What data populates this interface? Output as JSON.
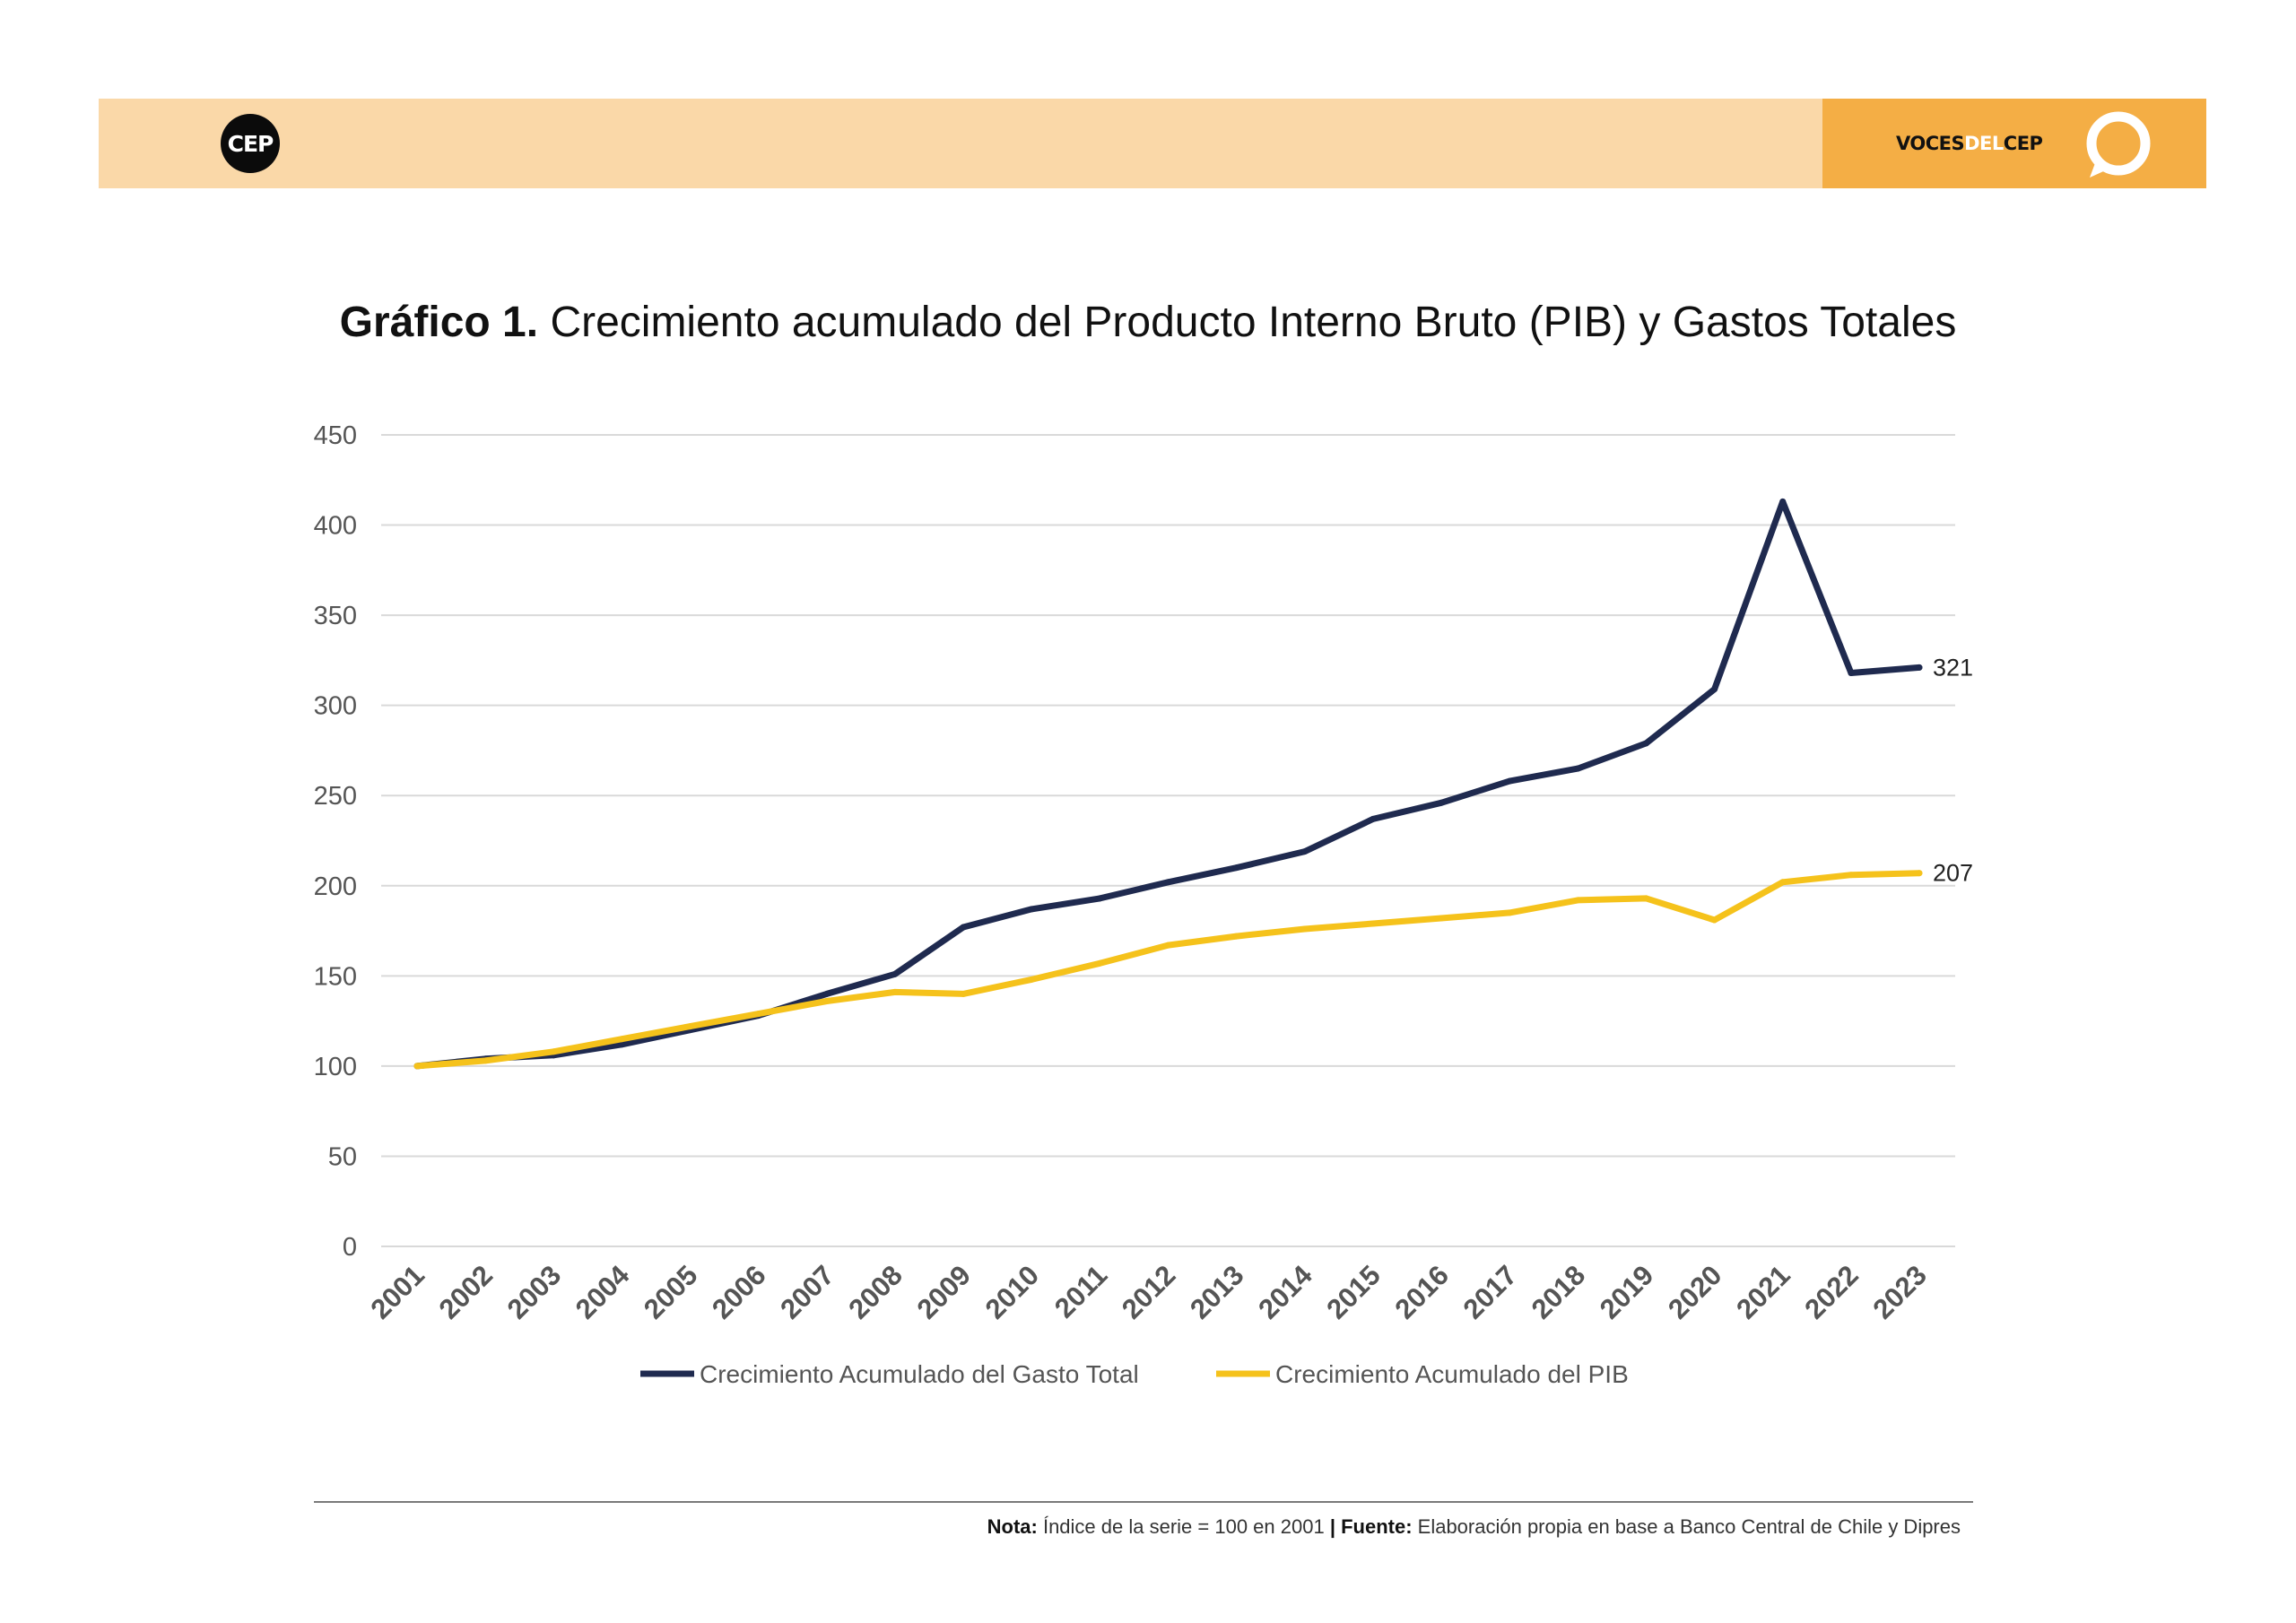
{
  "header": {
    "logo_text": "CEP",
    "brand_part1": "VOCES",
    "brand_part2": "DEL",
    "brand_part3": "CEP",
    "icon": "speech-bubble-icon",
    "colors": {
      "band": "#fad8a8",
      "accent": "#f4ae45"
    }
  },
  "title": {
    "bold": "Gráfico 1.",
    "text": "Crecimiento acumulado del Producto Interno Bruto (PIB) y Gastos Totales"
  },
  "chart_data": {
    "type": "line",
    "x": [
      "2001",
      "2002",
      "2003",
      "2004",
      "2005",
      "2006",
      "2007",
      "2008",
      "2009",
      "2010",
      "2011",
      "2012",
      "2013",
      "2014",
      "2015",
      "2016",
      "2017",
      "2018",
      "2019",
      "2020",
      "2021",
      "2022",
      "2023"
    ],
    "series": [
      {
        "name": "Crecimiento Acumulado del Gasto Total",
        "color": "#1f2a4f",
        "values": [
          100,
          104,
          106,
          112,
          120,
          128,
          140,
          151,
          177,
          187,
          193,
          202,
          210,
          219,
          237,
          246,
          258,
          265,
          279,
          309,
          413,
          318,
          321
        ],
        "end_label": "321"
      },
      {
        "name": "Crecimiento Acumulado del PIB",
        "color": "#f5c21b",
        "values": [
          100,
          103,
          108,
          115,
          122,
          129,
          136,
          141,
          140,
          148,
          157,
          167,
          172,
          176,
          179,
          182,
          185,
          192,
          193,
          181,
          202,
          206,
          207
        ],
        "end_label": "207"
      }
    ],
    "yticks": [
      "0",
      "50",
      "100",
      "150",
      "200",
      "250",
      "300",
      "350",
      "400",
      "450"
    ],
    "ylim": [
      0,
      450
    ],
    "grid": true,
    "legend": "bottom"
  },
  "footer": {
    "note_label": "Nota:",
    "note_text": " Índice de la serie = 100 en 2001 ",
    "separator": "|",
    "source_label": " Fuente:",
    "source_text": " Elaboración propia en base a Banco Central de Chile y Dipres"
  }
}
